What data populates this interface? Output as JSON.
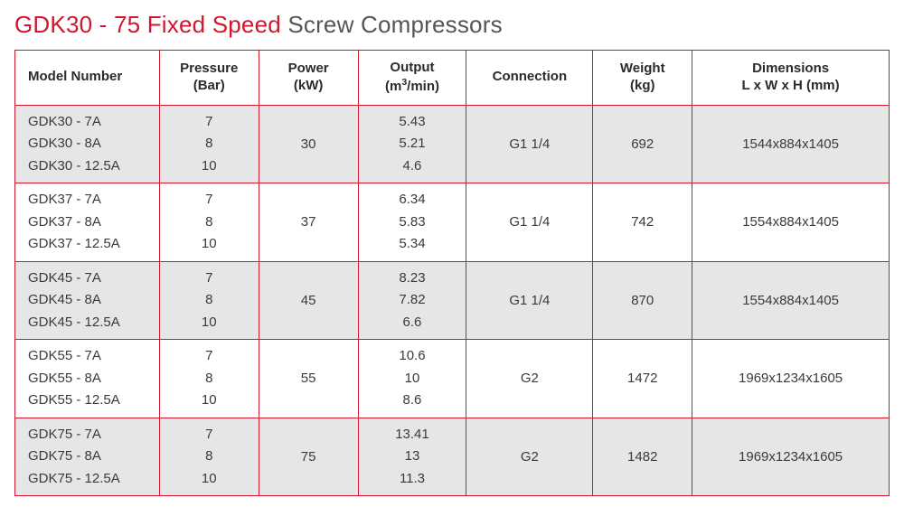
{
  "title": {
    "accent": "GDK30 - 75 Fixed Speed",
    "rest": " Screw Compressors"
  },
  "colors": {
    "accent": "#d3152e",
    "text": "#3a3a3a",
    "shade_bg": "#e6e6e6",
    "plain_bg": "#ffffff"
  },
  "table": {
    "headers": {
      "model": {
        "l1": "Model Number",
        "l2": ""
      },
      "pressure": {
        "l1": "Pressure",
        "l2": "(Bar)"
      },
      "power": {
        "l1": "Power",
        "l2": "(kW)"
      },
      "output": {
        "l1": "Output",
        "l2": "(m³/min)"
      },
      "connection": {
        "l1": "Connection",
        "l2": ""
      },
      "weight": {
        "l1": "Weight",
        "l2": "(kg)"
      },
      "dimensions": {
        "l1": "Dimensions",
        "l2": "L x W x H (mm)"
      }
    },
    "groups": [
      {
        "shade": true,
        "models": [
          "GDK30 - 7A",
          "GDK30 - 8A",
          "GDK30 - 12.5A"
        ],
        "pressure": [
          "7",
          "8",
          "10"
        ],
        "output": [
          "5.43",
          "5.21",
          "4.6"
        ],
        "power": "30",
        "connection": "G1 1/4",
        "weight": "692",
        "dimensions": "1544x884x1405"
      },
      {
        "shade": false,
        "models": [
          "GDK37 - 7A",
          "GDK37 - 8A",
          "GDK37 - 12.5A"
        ],
        "pressure": [
          "7",
          "8",
          "10"
        ],
        "output": [
          "6.34",
          "5.83",
          "5.34"
        ],
        "power": "37",
        "connection": "G1 1/4",
        "weight": "742",
        "dimensions": "1554x884x1405"
      },
      {
        "shade": true,
        "models": [
          "GDK45 - 7A",
          "GDK45 - 8A",
          "GDK45 - 12.5A"
        ],
        "pressure": [
          "7",
          "8",
          "10"
        ],
        "output": [
          "8.23",
          "7.82",
          "6.6"
        ],
        "power": "45",
        "connection": "G1 1/4",
        "weight": "870",
        "dimensions": "1554x884x1405"
      },
      {
        "shade": false,
        "models": [
          "GDK55 - 7A",
          "GDK55 - 8A",
          "GDK55 - 12.5A"
        ],
        "pressure": [
          "7",
          "8",
          "10"
        ],
        "output": [
          "10.6",
          "10",
          "8.6"
        ],
        "power": "55",
        "connection": "G2",
        "weight": "1472",
        "dimensions": "1969x1234x1605"
      },
      {
        "shade": true,
        "models": [
          "GDK75 - 7A",
          "GDK75 - 8A",
          "GDK75 - 12.5A"
        ],
        "pressure": [
          "7",
          "8",
          "10"
        ],
        "output": [
          "13.41",
          "13",
          "11.3"
        ],
        "power": "75",
        "connection": "G2",
        "weight": "1482",
        "dimensions": "1969x1234x1605"
      }
    ]
  }
}
